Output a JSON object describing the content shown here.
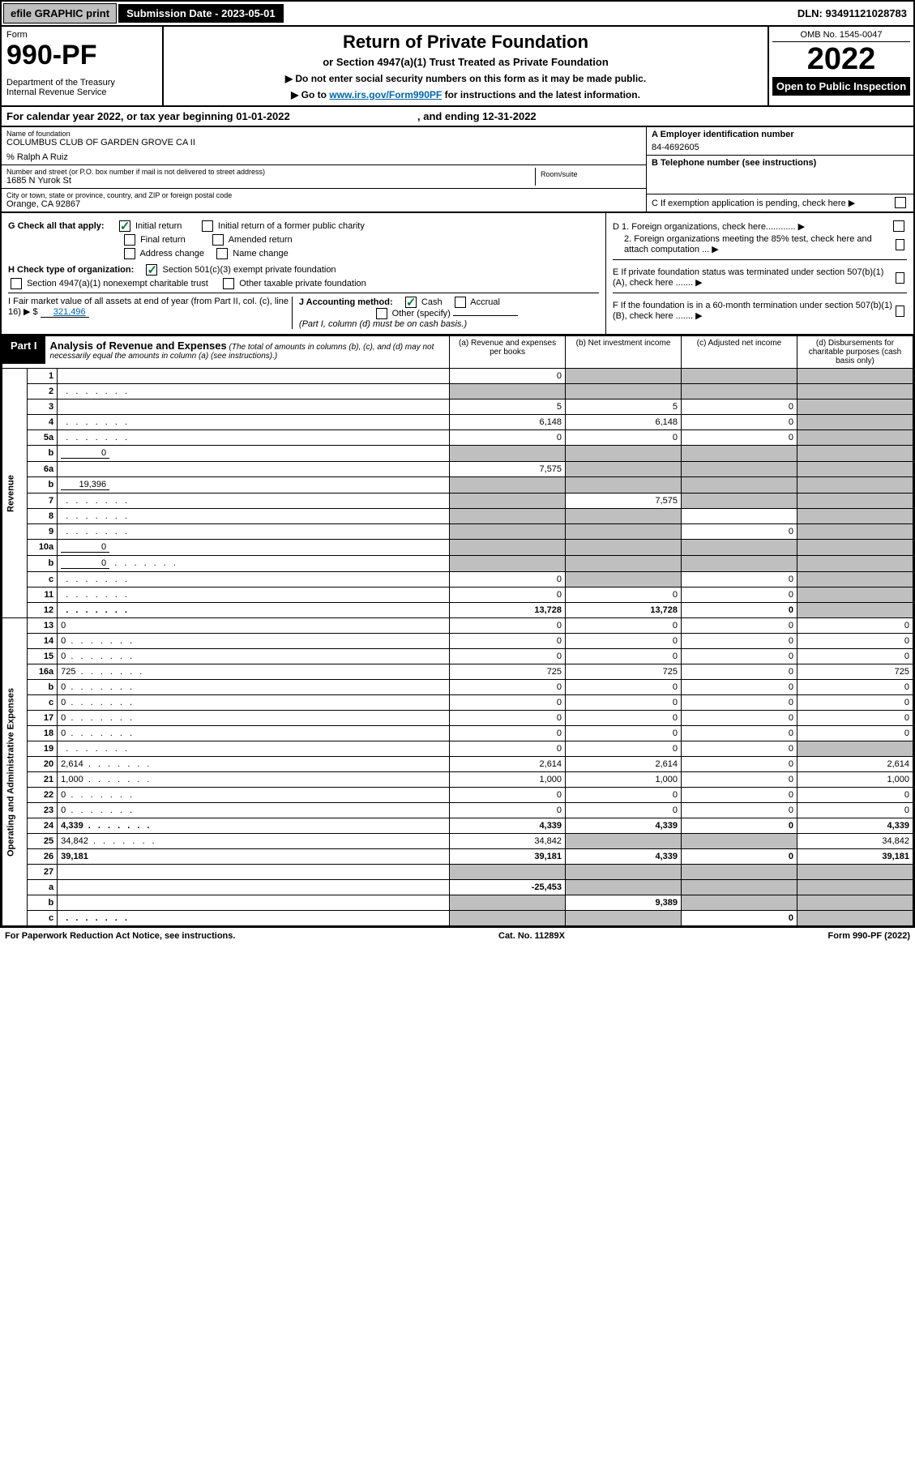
{
  "topbar": {
    "efile": "efile GRAPHIC print",
    "sub_label": "Submission Date - 2023-05-01",
    "dln": "DLN: 93491121028783"
  },
  "header": {
    "form_label": "Form",
    "form_num": "990-PF",
    "dept": "Department of the Treasury\nInternal Revenue Service",
    "title": "Return of Private Foundation",
    "subtitle": "or Section 4947(a)(1) Trust Treated as Private Foundation",
    "note1": "▶ Do not enter social security numbers on this form as it may be made public.",
    "note2_pre": "▶ Go to ",
    "note2_link": "www.irs.gov/Form990PF",
    "note2_post": " for instructions and the latest information.",
    "omb": "OMB No. 1545-0047",
    "year": "2022",
    "badge": "Open to Public Inspection"
  },
  "calyear": {
    "pre": "For calendar year 2022, or tax year beginning ",
    "begin": "01-01-2022",
    "mid": " , and ending ",
    "end": "12-31-2022"
  },
  "id": {
    "name_label": "Name of foundation",
    "name": "COLUMBUS CLUB OF GARDEN GROVE CA II",
    "co": "% Ralph A Ruiz",
    "addr_label": "Number and street (or P.O. box number if mail is not delivered to street address)",
    "addr": "1685 N Yurok St",
    "room_label": "Room/suite",
    "city_label": "City or town, state or province, country, and ZIP or foreign postal code",
    "city": "Orange, CA  92867",
    "ein_label": "A Employer identification number",
    "ein": "84-4692605",
    "tel_label": "B Telephone number (see instructions)",
    "c_label": "C If exemption application is pending, check here ▶"
  },
  "checks": {
    "g_label": "G Check all that apply:",
    "g_initial": "Initial return",
    "g_initial_former": "Initial return of a former public charity",
    "g_final": "Final return",
    "g_amended": "Amended return",
    "g_addr": "Address change",
    "g_name": "Name change",
    "h_label": "H Check type of organization:",
    "h_501c3": "Section 501(c)(3) exempt private foundation",
    "h_4947": "Section 4947(a)(1) nonexempt charitable trust",
    "h_other": "Other taxable private foundation",
    "i_label": "I Fair market value of all assets at end of year (from Part II, col. (c), line 16) ▶ $",
    "i_val": "321,496",
    "j_label": "J Accounting method:",
    "j_cash": "Cash",
    "j_accrual": "Accrual",
    "j_other": "Other (specify)",
    "j_note": "(Part I, column (d) must be on cash basis.)",
    "d1": "D 1. Foreign organizations, check here............ ▶",
    "d2": "2. Foreign organizations meeting the 85% test, check here and attach computation ... ▶",
    "e": "E If private foundation status was terminated under section 507(b)(1)(A), check here ....... ▶",
    "f": "F If the foundation is in a 60-month termination under section 507(b)(1)(B), check here ....... ▶"
  },
  "part1": {
    "label": "Part I",
    "title": "Analysis of Revenue and Expenses",
    "title_note": "(The total of amounts in columns (b), (c), and (d) may not necessarily equal the amounts in column (a) (see instructions).)",
    "col_a": "(a) Revenue and expenses per books",
    "col_b": "(b) Net investment income",
    "col_c": "(c) Adjusted net income",
    "col_d": "(d) Disbursements for charitable purposes (cash basis only)",
    "side_rev": "Revenue",
    "side_exp": "Operating and Administrative Expenses"
  },
  "rows": [
    {
      "n": "1",
      "d": "",
      "a": "0",
      "b": "",
      "c": "",
      "b_sh": true,
      "c_sh": true,
      "d_sh": true
    },
    {
      "n": "2",
      "d": "",
      "a": "",
      "b": "",
      "c": "",
      "a_sh": true,
      "b_sh": true,
      "c_sh": true,
      "d_sh": true,
      "dotted": true
    },
    {
      "n": "3",
      "d": "",
      "a": "5",
      "b": "5",
      "c": "0",
      "d_sh": true
    },
    {
      "n": "4",
      "d": "",
      "a": "6,148",
      "b": "6,148",
      "c": "0",
      "d_sh": true,
      "dotted": true
    },
    {
      "n": "5a",
      "d": "",
      "a": "0",
      "b": "0",
      "c": "0",
      "d_sh": true,
      "dotted": true
    },
    {
      "n": "b",
      "d": "",
      "a": "",
      "b": "",
      "c": "",
      "a_sh": true,
      "b_sh": true,
      "c_sh": true,
      "d_sh": true,
      "inline": "0"
    },
    {
      "n": "6a",
      "d": "",
      "a": "7,575",
      "b": "",
      "c": "",
      "b_sh": true,
      "c_sh": true,
      "d_sh": true
    },
    {
      "n": "b",
      "d": "",
      "a": "",
      "b": "",
      "c": "",
      "a_sh": true,
      "b_sh": true,
      "c_sh": true,
      "d_sh": true,
      "inline": "19,396"
    },
    {
      "n": "7",
      "d": "",
      "a": "",
      "b": "7,575",
      "c": "",
      "a_sh": true,
      "c_sh": true,
      "d_sh": true,
      "dotted": true
    },
    {
      "n": "8",
      "d": "",
      "a": "",
      "b": "",
      "c": "",
      "a_sh": true,
      "b_sh": true,
      "d_sh": true,
      "dotted": true
    },
    {
      "n": "9",
      "d": "",
      "a": "",
      "b": "",
      "c": "0",
      "a_sh": true,
      "b_sh": true,
      "d_sh": true,
      "dotted": true
    },
    {
      "n": "10a",
      "d": "",
      "a": "",
      "b": "",
      "c": "",
      "a_sh": true,
      "b_sh": true,
      "c_sh": true,
      "d_sh": true,
      "inline": "0"
    },
    {
      "n": "b",
      "d": "",
      "a": "",
      "b": "",
      "c": "",
      "a_sh": true,
      "b_sh": true,
      "c_sh": true,
      "d_sh": true,
      "inline": "0",
      "dotted": true
    },
    {
      "n": "c",
      "d": "",
      "a": "0",
      "b": "",
      "c": "0",
      "b_sh": true,
      "d_sh": true,
      "dotted": true
    },
    {
      "n": "11",
      "d": "",
      "a": "0",
      "b": "0",
      "c": "0",
      "d_sh": true,
      "dotted": true
    },
    {
      "n": "12",
      "d": "",
      "a": "13,728",
      "b": "13,728",
      "c": "0",
      "d_sh": true,
      "bold": true,
      "dotted": true
    },
    {
      "n": "13",
      "d": "0",
      "a": "0",
      "b": "0",
      "c": "0"
    },
    {
      "n": "14",
      "d": "0",
      "a": "0",
      "b": "0",
      "c": "0",
      "dotted": true
    },
    {
      "n": "15",
      "d": "0",
      "a": "0",
      "b": "0",
      "c": "0",
      "dotted": true
    },
    {
      "n": "16a",
      "d": "725",
      "a": "725",
      "b": "725",
      "c": "0",
      "dotted": true
    },
    {
      "n": "b",
      "d": "0",
      "a": "0",
      "b": "0",
      "c": "0",
      "dotted": true
    },
    {
      "n": "c",
      "d": "0",
      "a": "0",
      "b": "0",
      "c": "0",
      "dotted": true
    },
    {
      "n": "17",
      "d": "0",
      "a": "0",
      "b": "0",
      "c": "0",
      "dotted": true
    },
    {
      "n": "18",
      "d": "0",
      "a": "0",
      "b": "0",
      "c": "0",
      "dotted": true
    },
    {
      "n": "19",
      "d": "",
      "a": "0",
      "b": "0",
      "c": "0",
      "d_sh": true,
      "dotted": true
    },
    {
      "n": "20",
      "d": "2,614",
      "a": "2,614",
      "b": "2,614",
      "c": "0",
      "dotted": true
    },
    {
      "n": "21",
      "d": "1,000",
      "a": "1,000",
      "b": "1,000",
      "c": "0",
      "dotted": true
    },
    {
      "n": "22",
      "d": "0",
      "a": "0",
      "b": "0",
      "c": "0",
      "dotted": true
    },
    {
      "n": "23",
      "d": "0",
      "a": "0",
      "b": "0",
      "c": "0",
      "dotted": true
    },
    {
      "n": "24",
      "d": "4,339",
      "a": "4,339",
      "b": "4,339",
      "c": "0",
      "bold": true,
      "dotted": true
    },
    {
      "n": "25",
      "d": "34,842",
      "a": "34,842",
      "b": "",
      "c": "",
      "b_sh": true,
      "c_sh": true,
      "dotted": true
    },
    {
      "n": "26",
      "d": "39,181",
      "a": "39,181",
      "b": "4,339",
      "c": "0",
      "bold": true
    },
    {
      "n": "27",
      "d": "",
      "a": "",
      "b": "",
      "c": "",
      "a_sh": true,
      "b_sh": true,
      "c_sh": true,
      "d_sh": true
    },
    {
      "n": "a",
      "d": "",
      "a": "-25,453",
      "b": "",
      "c": "",
      "b_sh": true,
      "c_sh": true,
      "d_sh": true,
      "bold": true
    },
    {
      "n": "b",
      "d": "",
      "a": "",
      "b": "9,389",
      "c": "",
      "a_sh": true,
      "c_sh": true,
      "d_sh": true,
      "bold": true
    },
    {
      "n": "c",
      "d": "",
      "a": "",
      "b": "",
      "c": "0",
      "a_sh": true,
      "b_sh": true,
      "d_sh": true,
      "bold": true,
      "dotted": true
    }
  ],
  "footer": {
    "left": "For Paperwork Reduction Act Notice, see instructions.",
    "mid": "Cat. No. 11289X",
    "right": "Form 990-PF (2022)"
  }
}
